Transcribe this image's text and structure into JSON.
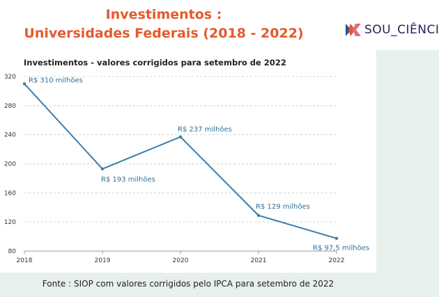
{
  "header": {
    "title_line1": "Investimentos :",
    "title_line2": "Universidades Federais (2018 - 2022)"
  },
  "logo": {
    "text": "SOU_CIÊNCI",
    "icon": "sou-ciencia-logo-icon"
  },
  "footer": {
    "note": "Fonte : SIOP com valores corrigidos pelo IPCA para setembro de 2022"
  },
  "colors": {
    "title": "#e35a2c",
    "line": "#3a7dac",
    "label": "#2f6f9a",
    "background": "#e7f0ea"
  },
  "chart_data": {
    "type": "line",
    "title": "Investimentos - valores corrigidos para setembro de 2022",
    "xlabel": "",
    "ylabel": "",
    "x": [
      "2018",
      "2019",
      "2020",
      "2021",
      "2022"
    ],
    "series": [
      {
        "values": [
          310,
          193,
          237,
          129,
          97.5
        ],
        "labels": [
          "R$ 310 milhões",
          "R$ 193 milhões",
          "R$ 237 milhões",
          "R$ 129 milhões",
          "R$ 97,5 milhões"
        ]
      }
    ],
    "yticks": [
      80,
      120,
      160,
      200,
      240,
      280,
      320
    ],
    "ylim": [
      80,
      320
    ],
    "grid": true,
    "legend": "none"
  }
}
